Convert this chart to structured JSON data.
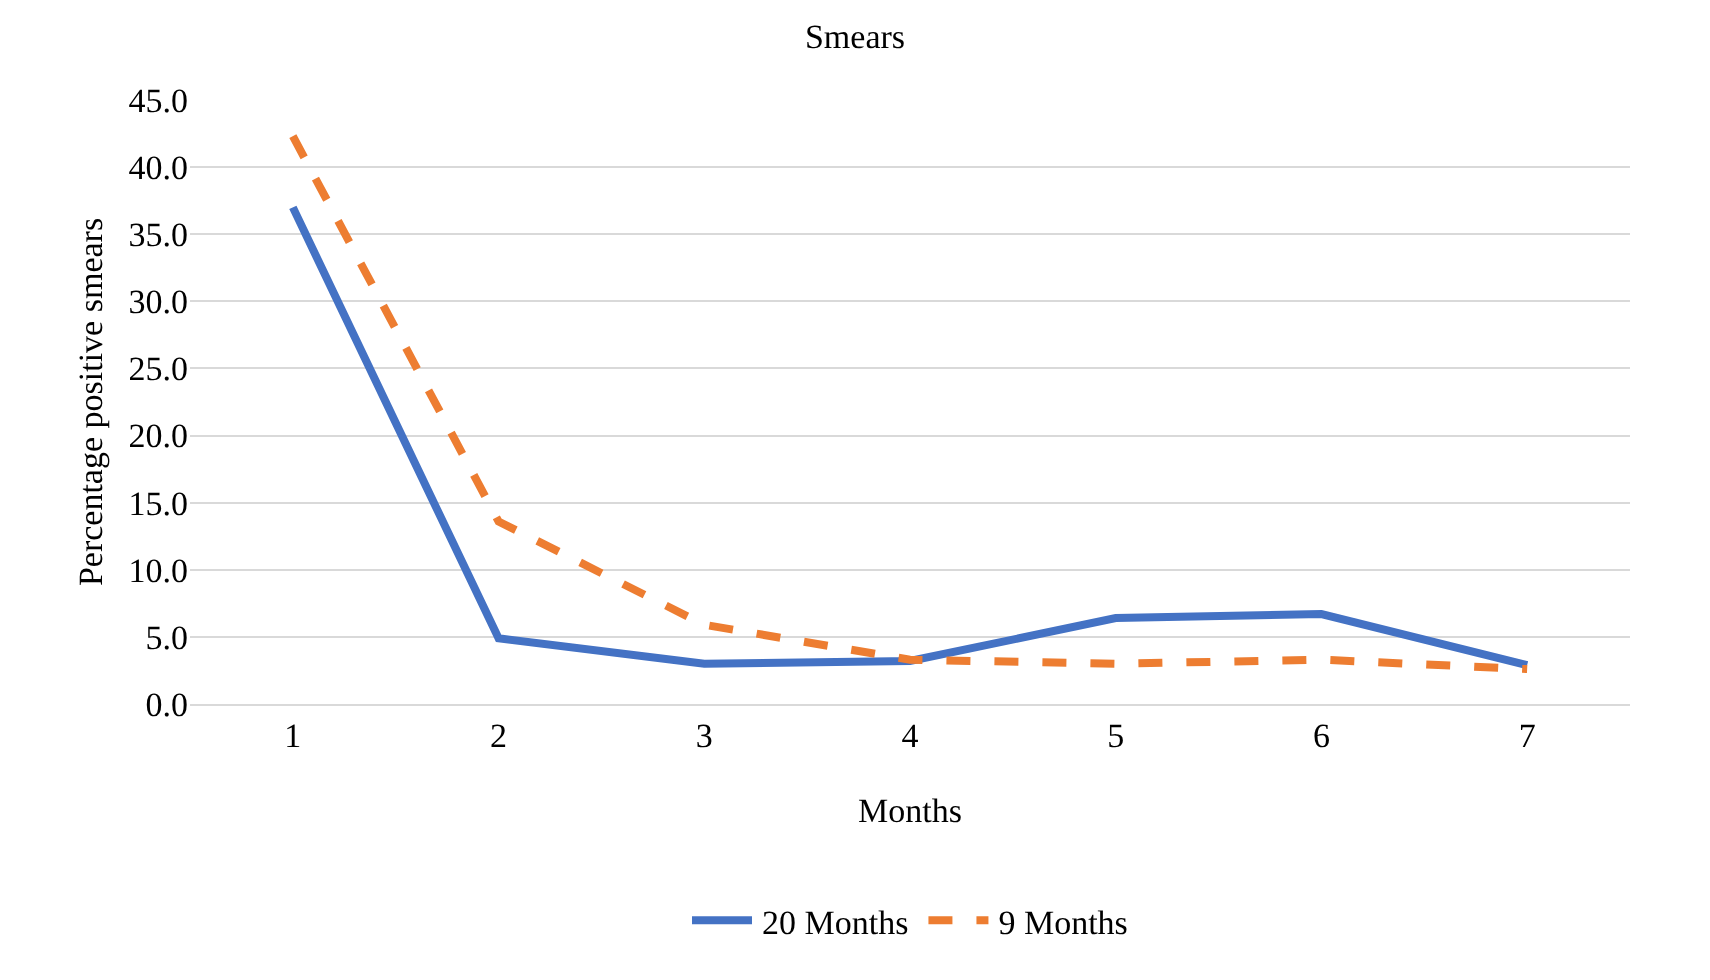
{
  "chart_data": {
    "type": "line",
    "title": "Smears",
    "xlabel": "Months",
    "ylabel": "Percentage positive smears",
    "categories": [
      "1",
      "2",
      "3",
      "4",
      "5",
      "6",
      "7"
    ],
    "series": [
      {
        "name": "20 Months",
        "color": "#4472c4",
        "line_style": "solid",
        "values": [
          37.0,
          4.9,
          3.0,
          3.2,
          6.4,
          6.7,
          2.9
        ]
      },
      {
        "name": "9 Months",
        "color": "#ed7d31",
        "line_style": "dashed",
        "values": [
          42.3,
          13.6,
          5.9,
          3.3,
          3.0,
          3.3,
          2.6
        ]
      }
    ],
    "ylim": [
      0,
      45
    ],
    "yticks": [
      {
        "value": 0,
        "label": "0.0"
      },
      {
        "value": 5,
        "label": "5.0"
      },
      {
        "value": 10,
        "label": "10.0"
      },
      {
        "value": 15,
        "label": "15.0"
      },
      {
        "value": 20,
        "label": "20.0"
      },
      {
        "value": 25,
        "label": "25.0"
      },
      {
        "value": 30,
        "label": "30.0"
      },
      {
        "value": 35,
        "label": "35.0"
      },
      {
        "value": 40,
        "label": "40.0"
      },
      {
        "value": 45,
        "label": "45.0"
      }
    ],
    "grid": "y",
    "legend": "bottom",
    "marker": "none"
  }
}
